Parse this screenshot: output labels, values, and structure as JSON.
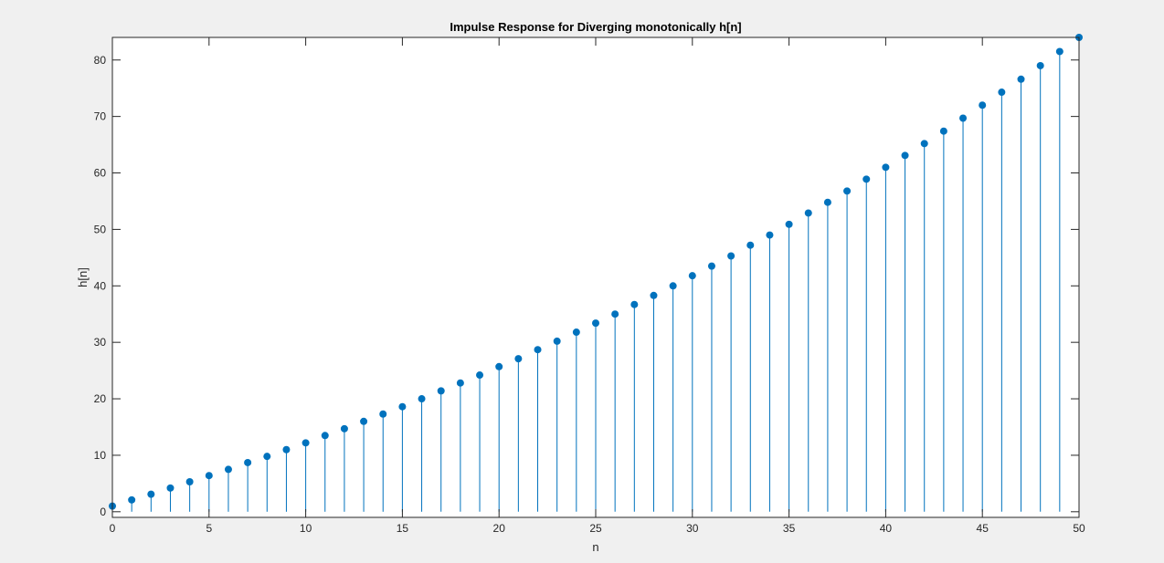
{
  "chart_data": {
    "type": "stem",
    "title": "Impulse Response for Diverging monotonically h[n]",
    "xlabel": "n",
    "ylabel": "h[n]",
    "xlim": [
      0,
      50
    ],
    "ylim": [
      -1,
      84
    ],
    "xticks": [
      0,
      5,
      10,
      15,
      20,
      25,
      30,
      35,
      40,
      45,
      50
    ],
    "yticks": [
      0,
      10,
      20,
      30,
      40,
      50,
      60,
      70,
      80
    ],
    "grid": false,
    "color": "#0072BD",
    "x": [
      0,
      1,
      2,
      3,
      4,
      5,
      6,
      7,
      8,
      9,
      10,
      11,
      12,
      13,
      14,
      15,
      16,
      17,
      18,
      19,
      20,
      21,
      22,
      23,
      24,
      25,
      26,
      27,
      28,
      29,
      30,
      31,
      32,
      33,
      34,
      35,
      36,
      37,
      38,
      39,
      40,
      41,
      42,
      43,
      44,
      45,
      46,
      47,
      48,
      49,
      50
    ],
    "values": [
      1.0,
      2.1,
      3.1,
      4.2,
      5.3,
      6.4,
      7.5,
      8.7,
      9.8,
      11.0,
      12.2,
      13.5,
      14.7,
      16.0,
      17.3,
      18.6,
      20.0,
      21.4,
      22.8,
      24.2,
      25.7,
      27.1,
      28.7,
      30.2,
      31.8,
      33.4,
      35.0,
      36.7,
      38.3,
      40.0,
      41.8,
      43.5,
      45.3,
      47.2,
      49.0,
      50.9,
      52.9,
      54.8,
      56.8,
      58.9,
      61.0,
      63.1,
      65.2,
      67.4,
      69.7,
      72.0,
      74.3,
      76.6,
      79.0,
      81.5,
      84.0
    ]
  }
}
